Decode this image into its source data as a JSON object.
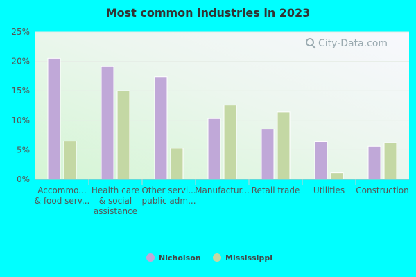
{
  "chart_data": {
    "type": "bar",
    "title": "Most common industries in 2023",
    "xlabel": "",
    "ylabel": "",
    "ylim": [
      0,
      25
    ],
    "yticks": [
      0,
      5,
      10,
      15,
      20,
      25
    ],
    "ytick_labels": [
      "0%",
      "5%",
      "10%",
      "15%",
      "20%",
      "25%"
    ],
    "categories": [
      [
        "Accommo...",
        "& food serv..."
      ],
      [
        "Health care",
        "& social",
        "assistance"
      ],
      [
        "Other servi...",
        "public adm..."
      ],
      [
        "Manufactur..."
      ],
      [
        "Retail trade"
      ],
      [
        "Utilities"
      ],
      [
        "Construction"
      ]
    ],
    "series": [
      {
        "name": "Nicholson",
        "color": "#c0a8d8",
        "values": [
          20.5,
          19.1,
          17.4,
          10.3,
          8.5,
          6.4,
          5.6
        ]
      },
      {
        "name": "Mississippi",
        "color": "#c4d8a4",
        "values": [
          6.5,
          15.0,
          5.3,
          12.6,
          11.4,
          1.1,
          6.2
        ]
      }
    ],
    "legend_position": "bottom",
    "watermark": "City-Data.com"
  }
}
